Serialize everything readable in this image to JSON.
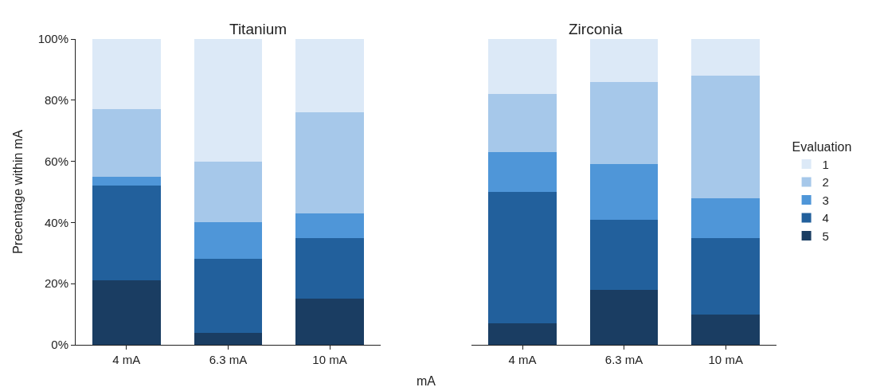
{
  "chart_data": [
    {
      "type": "bar",
      "title": "Titanium",
      "xlabel": "mA",
      "ylabel": "Precentage within mA",
      "stacked": true,
      "categories": [
        "4 mA",
        "6.3 mA",
        "10 mA"
      ],
      "series": [
        {
          "name": "5",
          "color": "#1a3d62",
          "values": [
            21,
            4,
            15
          ]
        },
        {
          "name": "4",
          "color": "#22609c",
          "values": [
            31,
            24,
            20
          ]
        },
        {
          "name": "3",
          "color": "#4f96d8",
          "values": [
            3,
            12,
            8
          ]
        },
        {
          "name": "2",
          "color": "#a6c8ea",
          "values": [
            22,
            20,
            33
          ]
        },
        {
          "name": "1",
          "color": "#dce9f7",
          "values": [
            23,
            40,
            24
          ]
        }
      ],
      "ylim": [
        0,
        100
      ],
      "yticks": [
        {
          "value": 0,
          "label": "0%"
        },
        {
          "value": 20,
          "label": "20%"
        },
        {
          "value": 40,
          "label": "40%"
        },
        {
          "value": 60,
          "label": "60%"
        },
        {
          "value": 80,
          "label": "80%"
        },
        {
          "value": 100,
          "label": "100%"
        }
      ],
      "legend": "right"
    },
    {
      "type": "bar",
      "title": "Zirconia",
      "stacked": true,
      "categories": [
        "4 mA",
        "6.3 mA",
        "10 mA"
      ],
      "series": [
        {
          "name": "5",
          "color": "#1a3d62",
          "values": [
            7,
            18,
            10
          ]
        },
        {
          "name": "4",
          "color": "#22609c",
          "values": [
            43,
            23,
            25
          ]
        },
        {
          "name": "3",
          "color": "#4f96d8",
          "values": [
            13,
            18,
            13
          ]
        },
        {
          "name": "2",
          "color": "#a6c8ea",
          "values": [
            19,
            27,
            40
          ]
        },
        {
          "name": "1",
          "color": "#dce9f7",
          "values": [
            18,
            14,
            12
          ]
        }
      ],
      "ylim": [
        0,
        100
      ],
      "tick_labels": "x",
      "legend": "right",
      "legend_title": "Evaluation"
    }
  ]
}
